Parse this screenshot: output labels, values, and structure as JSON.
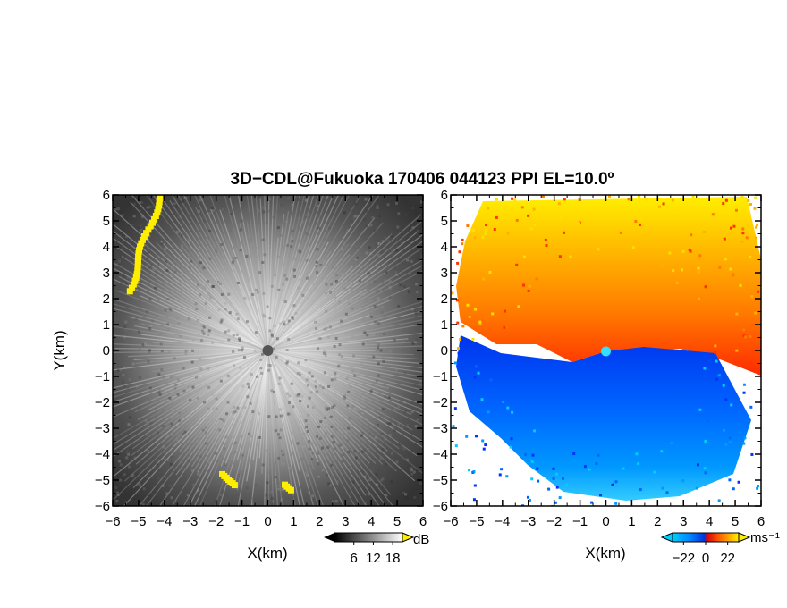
{
  "chart_data": [
    {
      "type": "heatmap",
      "panel": "reflectivity",
      "title": "3D−CDL@Fukuoka 170406 044123 PPI EL=10.0º",
      "xlabel": "X(km)",
      "ylabel": "Y(km)",
      "xlim": [
        -6,
        6
      ],
      "ylim": [
        -6,
        6
      ],
      "xticks": [
        "−6",
        "−5",
        "−4",
        "−3",
        "−2",
        "−1",
        "0",
        "1",
        "2",
        "3",
        "4",
        "5",
        "6"
      ],
      "yticks": [
        "−6",
        "−5",
        "−4",
        "−3",
        "−2",
        "−1",
        "0",
        "1",
        "2",
        "3",
        "4",
        "5",
        "6"
      ],
      "colormap": "gray-to-yellow",
      "colorbar": {
        "unit": "dB",
        "ticks": [
          "6",
          "12",
          "18"
        ],
        "range": [
          0,
          21
        ],
        "extend": "both"
      },
      "features": [
        {
          "name": "high-echo-band-northwest",
          "x": [
            -4.2,
            -5.4
          ],
          "y": [
            6.0,
            2.3
          ]
        },
        {
          "name": "high-echo-south-1",
          "x": -1.5,
          "y": -5.0
        },
        {
          "name": "high-echo-south-2",
          "x": 0.8,
          "y": -5.3
        }
      ]
    },
    {
      "type": "heatmap",
      "panel": "doppler-velocity",
      "xlabel": "X(km)",
      "xlim": [
        -6,
        6
      ],
      "ylim": [
        -6,
        6
      ],
      "xticks": [
        "−6",
        "−5",
        "−4",
        "−3",
        "−2",
        "−1",
        "0",
        "1",
        "2",
        "3",
        "4",
        "5",
        "6"
      ],
      "yticks": [
        "−6",
        "−5",
        "−4",
        "−3",
        "−2",
        "−1",
        "0",
        "1",
        "2",
        "3",
        "4",
        "5",
        "6"
      ],
      "colormap": "blue-cyan-red-yellow",
      "colorbar": {
        "unit": "ms⁻¹",
        "ticks": [
          "−22",
          "0",
          "22"
        ],
        "range": [
          -33,
          33
        ],
        "extend": "both"
      },
      "features": [
        {
          "name": "receding-flow-north",
          "sign": "positive",
          "y_range": [
            0,
            6
          ]
        },
        {
          "name": "approaching-flow-south",
          "sign": "negative",
          "y_range": [
            -6,
            0
          ]
        }
      ]
    }
  ],
  "colors": {
    "yellow_echo": "#ffee00",
    "vel_pos_low": "#ff3300",
    "vel_pos_high": "#ffee00",
    "vel_neg_low": "#0033ff",
    "vel_neg_high": "#00ccff"
  }
}
